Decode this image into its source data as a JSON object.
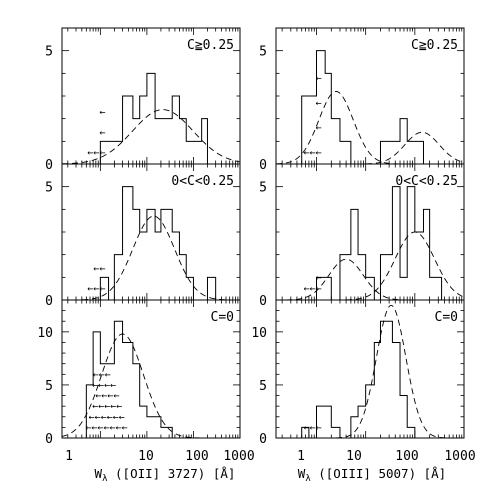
{
  "chart_data": [
    {
      "type": "histogram",
      "id": "oii-hi",
      "panel_label": "C≧0.25",
      "xscale": "log",
      "xlim": [
        0.15,
        1000
      ],
      "ylim": [
        0,
        6
      ],
      "bin_edges": [
        0.5,
        1,
        2,
        3,
        5,
        7,
        10,
        15,
        20,
        35,
        50,
        70,
        100,
        150,
        200,
        350
      ],
      "counts": [
        0,
        1,
        1,
        3,
        2,
        3,
        4,
        2,
        2,
        3,
        2,
        1,
        1,
        2,
        0
      ],
      "fit_peak": {
        "center": 22,
        "amplitude": 2.4,
        "sigma_dex": 0.65
      },
      "upper_limit_arrows": [
        {
          "x": 1,
          "y": 2.3,
          "text": "←"
        },
        {
          "x": 1,
          "y": 1.4,
          "text": "←"
        },
        {
          "x": 1,
          "y": 0.5,
          "text": "←←←"
        }
      ]
    },
    {
      "type": "histogram",
      "id": "oiii-hi",
      "panel_label": "C≧0.25",
      "xscale": "log",
      "xlim": [
        0.15,
        1000
      ],
      "ylim": [
        0,
        6
      ],
      "bin_edges": [
        0.5,
        1,
        1.5,
        2,
        3,
        5,
        7,
        10,
        20,
        50,
        70,
        100,
        150,
        200,
        350
      ],
      "counts": [
        3,
        5,
        4,
        2,
        1,
        0,
        0,
        0,
        1,
        2,
        1,
        1,
        0,
        0
      ],
      "fit_peak": [
        {
          "center": 2.5,
          "amplitude": 3.2,
          "sigma_dex": 0.35
        },
        {
          "center": 140,
          "amplitude": 1.4,
          "sigma_dex": 0.35
        }
      ],
      "upper_limit_arrows": [
        {
          "x": 1,
          "y": 3.8,
          "text": "←"
        },
        {
          "x": 1,
          "y": 2.7,
          "text": "←"
        },
        {
          "x": 1,
          "y": 1.6,
          "text": "←"
        },
        {
          "x": 1,
          "y": 0.5,
          "text": "←←←"
        }
      ]
    },
    {
      "type": "histogram",
      "id": "oii-mid",
      "panel_label": "0<C<0.25",
      "xscale": "log",
      "xlim": [
        0.15,
        1000
      ],
      "ylim": [
        0,
        6
      ],
      "bin_edges": [
        0.5,
        1,
        1.5,
        2,
        3,
        5,
        7,
        10,
        15,
        20,
        35,
        50,
        70,
        100,
        200,
        300,
        500
      ],
      "counts": [
        0,
        1,
        0,
        2,
        5,
        4,
        3,
        4,
        3,
        4,
        3,
        2,
        1,
        0,
        1,
        0
      ],
      "fit_peak": {
        "center": 14,
        "amplitude": 3.7,
        "sigma_dex": 0.45
      },
      "upper_limit_arrows": [
        {
          "x": 1,
          "y": 1.4,
          "text": "←←"
        },
        {
          "x": 1,
          "y": 0.5,
          "text": "←←←"
        }
      ]
    },
    {
      "type": "histogram",
      "id": "oiii-mid",
      "panel_label": "0<C<0.25",
      "xscale": "log",
      "xlim": [
        0.15,
        1000
      ],
      "ylim": [
        0,
        6
      ],
      "bin_edges": [
        0.5,
        1,
        1.5,
        2,
        3,
        5,
        7,
        10,
        15,
        20,
        35,
        50,
        70,
        100,
        150,
        200,
        350
      ],
      "counts": [
        0,
        1,
        1,
        0,
        2,
        4,
        2,
        1,
        0,
        2,
        5,
        1,
        5,
        3,
        4,
        1
      ],
      "fit_peak": [
        {
          "center": 4,
          "amplitude": 1.8,
          "sigma_dex": 0.35
        },
        {
          "center": 100,
          "amplitude": 3.0,
          "sigma_dex": 0.4
        }
      ],
      "upper_limit_arrows": [
        {
          "x": 1,
          "y": 1.0,
          "text": "←"
        },
        {
          "x": 1,
          "y": 0.5,
          "text": "←←←"
        }
      ]
    },
    {
      "type": "histogram",
      "id": "oii-c0",
      "panel_label": "C=0",
      "xscale": "log",
      "xlim": [
        0.15,
        1000
      ],
      "ylim": [
        0,
        13
      ],
      "bin_edges": [
        0.5,
        0.7,
        1,
        1.5,
        2,
        3,
        5,
        7,
        10,
        15,
        20,
        35,
        50,
        70
      ],
      "counts": [
        5,
        10,
        7,
        7,
        11,
        9,
        7,
        3,
        2,
        2,
        1,
        0,
        0
      ],
      "fit_peak": {
        "center": 3,
        "amplitude": 9.8,
        "sigma_dex": 0.45
      },
      "upper_limit_arrows": [
        {
          "x": 1.3,
          "y": 6,
          "text": "←←←"
        },
        {
          "x": 1.7,
          "y": 5,
          "text": "←←←←"
        },
        {
          "x": 2.0,
          "y": 4,
          "text": "←←←←"
        },
        {
          "x": 2.3,
          "y": 3,
          "text": "←←←←←"
        },
        {
          "x": 2.6,
          "y": 2,
          "text": "←←←←←←"
        },
        {
          "x": 3.0,
          "y": 1,
          "text": "←←←←←←←"
        }
      ]
    },
    {
      "type": "histogram",
      "id": "oiii-c0",
      "panel_label": "C=0",
      "xscale": "log",
      "xlim": [
        0.15,
        1000
      ],
      "ylim": [
        0,
        13
      ],
      "bin_edges": [
        0.5,
        0.7,
        1,
        2,
        3,
        5,
        7,
        10,
        15,
        20,
        35,
        50,
        70,
        100
      ],
      "counts": [
        1,
        0,
        3,
        1,
        0,
        2,
        3,
        5,
        9,
        11,
        9,
        4,
        1
      ],
      "fit_peak": {
        "center": 33,
        "amplitude": 12.5,
        "sigma_dex": 0.3
      },
      "upper_limit_arrows": [
        {
          "x": 1,
          "y": 1.0,
          "text": "←←←"
        }
      ]
    }
  ],
  "axes": {
    "x_ticks": [
      "1",
      "10",
      "100",
      "1000"
    ],
    "x_tick_values": [
      1,
      10,
      100,
      1000
    ],
    "y_ticks_top": [
      "0",
      "5"
    ],
    "y_ticks_bottom": [
      "0",
      "5",
      "10"
    ],
    "xlabel_left": "W",
    "xlabel_left_sub": "λ",
    "xlabel_left_rest": " ([OII] 3727) [Å]",
    "xlabel_right": "W",
    "xlabel_right_sub": "λ",
    "xlabel_right_rest": " ([OIII] 5007) [Å]"
  },
  "style": {
    "line_color": "#000000",
    "background": "#ffffff"
  }
}
